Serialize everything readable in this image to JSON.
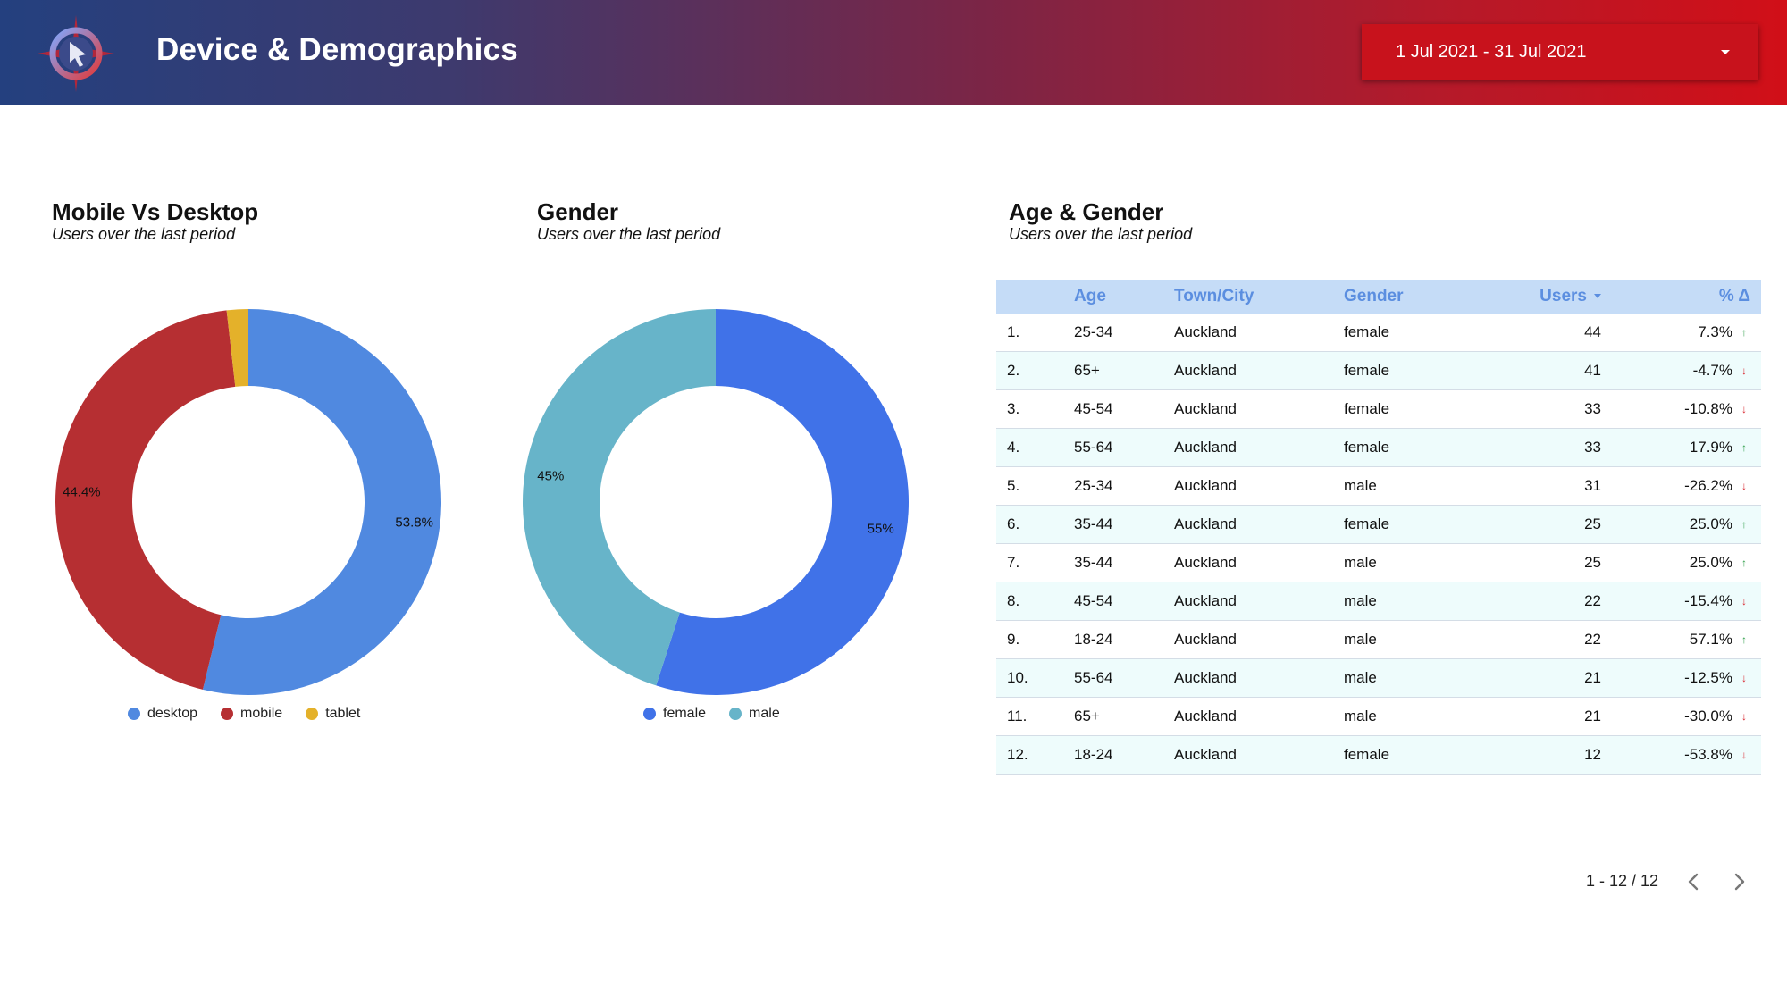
{
  "header": {
    "title": "Device & Demographics",
    "date_range": "1 Jul 2021 - 31 Jul 2021",
    "logo_icon": "compass-cursor-icon",
    "dropdown_icon": "caret-down-icon"
  },
  "colors": {
    "desktop": "#5089e0",
    "mobile": "#b62f32",
    "tablet": "#e4b12a",
    "female": "#4072e8",
    "male": "#67b4c9",
    "table_header_bg": "#c5dcf7",
    "table_header_text": "#5b8ee0",
    "up": "#2e9e48",
    "down": "#d8262e"
  },
  "cards": {
    "device": {
      "title": "Mobile Vs Desktop",
      "subtitle": "Users over the last period"
    },
    "gender": {
      "title": "Gender",
      "subtitle": "Users over the last period"
    },
    "age_gender": {
      "title": "Age & Gender",
      "subtitle": "Users over the last period"
    }
  },
  "chart_data": [
    {
      "type": "pie",
      "donut": true,
      "labels": [
        "desktop",
        "mobile",
        "tablet"
      ],
      "values": [
        53.8,
        44.4,
        1.8
      ],
      "value_labels": [
        "53.8%",
        "44.4%",
        ""
      ],
      "legend": "bottom"
    },
    {
      "type": "pie",
      "donut": true,
      "labels": [
        "female",
        "male"
      ],
      "values": [
        55,
        45
      ],
      "value_labels": [
        "55%",
        "45%"
      ],
      "legend": "bottom"
    }
  ],
  "table": {
    "headers": {
      "age": "Age",
      "city": "Town/City",
      "gender": "Gender",
      "users": "Users",
      "pct": "% Δ"
    },
    "sort_icon": "sort-desc-icon",
    "rows": [
      {
        "idx": "1.",
        "age": "25-34",
        "city": "Auckland",
        "gender": "female",
        "users": "44",
        "pct": "7.3%",
        "dir": "up"
      },
      {
        "idx": "2.",
        "age": "65+",
        "city": "Auckland",
        "gender": "female",
        "users": "41",
        "pct": "-4.7%",
        "dir": "down"
      },
      {
        "idx": "3.",
        "age": "45-54",
        "city": "Auckland",
        "gender": "female",
        "users": "33",
        "pct": "-10.8%",
        "dir": "down"
      },
      {
        "idx": "4.",
        "age": "55-64",
        "city": "Auckland",
        "gender": "female",
        "users": "33",
        "pct": "17.9%",
        "dir": "up"
      },
      {
        "idx": "5.",
        "age": "25-34",
        "city": "Auckland",
        "gender": "male",
        "users": "31",
        "pct": "-26.2%",
        "dir": "down"
      },
      {
        "idx": "6.",
        "age": "35-44",
        "city": "Auckland",
        "gender": "female",
        "users": "25",
        "pct": "25.0%",
        "dir": "up"
      },
      {
        "idx": "7.",
        "age": "35-44",
        "city": "Auckland",
        "gender": "male",
        "users": "25",
        "pct": "25.0%",
        "dir": "up"
      },
      {
        "idx": "8.",
        "age": "45-54",
        "city": "Auckland",
        "gender": "male",
        "users": "22",
        "pct": "-15.4%",
        "dir": "down"
      },
      {
        "idx": "9.",
        "age": "18-24",
        "city": "Auckland",
        "gender": "male",
        "users": "22",
        "pct": "57.1%",
        "dir": "up"
      },
      {
        "idx": "10.",
        "age": "55-64",
        "city": "Auckland",
        "gender": "male",
        "users": "21",
        "pct": "-12.5%",
        "dir": "down"
      },
      {
        "idx": "11.",
        "age": "65+",
        "city": "Auckland",
        "gender": "male",
        "users": "21",
        "pct": "-30.0%",
        "dir": "down"
      },
      {
        "idx": "12.",
        "age": "18-24",
        "city": "Auckland",
        "gender": "female",
        "users": "12",
        "pct": "-53.8%",
        "dir": "down"
      }
    ]
  },
  "pagination": {
    "text": "1 - 12 / 12",
    "prev_icon": "chevron-left-icon",
    "next_icon": "chevron-right-icon"
  }
}
